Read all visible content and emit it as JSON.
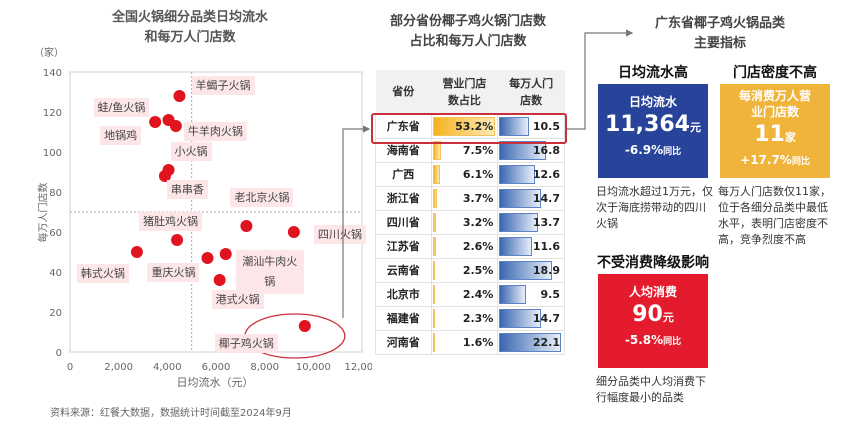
{
  "left": {
    "title1": "全国火锅细分品类日均流水",
    "title2": "和每万人门店数",
    "yunit": "（家）",
    "source": "资料来源：红餐大数据，数据统计时间截至2024年9月"
  },
  "chart_data": {
    "type": "scatter",
    "title": "全国火锅细分品类日均流水和每万人门店数",
    "xlabel": "日均流水（元）",
    "ylabel": "每万人门店数",
    "xlim": [
      0,
      12000
    ],
    "ylim": [
      0,
      140
    ],
    "xticks": [
      "0",
      "2,000",
      "4,000",
      "6,000",
      "8,000",
      "10,000",
      "12,000"
    ],
    "yticks": [
      "0",
      "20",
      "40",
      "60",
      "80",
      "100",
      "120",
      "140"
    ],
    "reference_lines": {
      "x": 5000,
      "y": 70
    },
    "grid": false,
    "points": [
      {
        "label": "羊蝎子火锅",
        "x": 4500,
        "y": 128
      },
      {
        "label": "蛙/鱼火锅",
        "x": 4050,
        "y": 116
      },
      {
        "label": "地锅鸡",
        "x": 3500,
        "y": 115
      },
      {
        "label": "牛羊肉火锅",
        "x": 4350,
        "y": 113
      },
      {
        "label": "小火锅",
        "x": 4050,
        "y": 91
      },
      {
        "label": "串串香",
        "x": 3900,
        "y": 88
      },
      {
        "label": "老北京火锅",
        "x": 7250,
        "y": 63
      },
      {
        "label": "四川火锅",
        "x": 9200,
        "y": 60
      },
      {
        "label": "猪肚鸡火锅",
        "x": 4400,
        "y": 56
      },
      {
        "label": "韩式火锅",
        "x": 2750,
        "y": 50
      },
      {
        "label": "重庆火锅",
        "x": 5650,
        "y": 47
      },
      {
        "label": "潮汕牛肉火锅",
        "x": 6400,
        "y": 49
      },
      {
        "label": "港式火锅",
        "x": 6150,
        "y": 36
      },
      {
        "label": "椰子鸡火锅",
        "x": 9650,
        "y": 13
      }
    ],
    "highlight": "椰子鸡火锅",
    "point_color": "#e0141e"
  },
  "table": {
    "title1": "部分省份椰子鸡火锅门店数",
    "title2": "占比和每万人门店数",
    "headers": [
      "省份",
      "营业门店数占比",
      "每万人门店数"
    ],
    "rows": [
      {
        "province": "广东省",
        "share": "53.2%",
        "density": "10.5"
      },
      {
        "province": "海南省",
        "share": "7.5%",
        "density": "16.8"
      },
      {
        "province": "广西",
        "share": "6.1%",
        "density": "12.6"
      },
      {
        "province": "浙江省",
        "share": "3.7%",
        "density": "14.7"
      },
      {
        "province": "四川省",
        "share": "3.2%",
        "density": "13.7"
      },
      {
        "province": "江苏省",
        "share": "2.6%",
        "density": "11.6"
      },
      {
        "province": "云南省",
        "share": "2.5%",
        "density": "18.9"
      },
      {
        "province": "北京市",
        "share": "2.4%",
        "density": "9.5"
      },
      {
        "province": "福建省",
        "share": "2.3%",
        "density": "14.7"
      },
      {
        "province": "河南省",
        "share": "1.6%",
        "density": "22.1"
      }
    ],
    "highlight": "广东省"
  },
  "right": {
    "title1": "广东省椰子鸡火锅品类",
    "title2": "主要指标",
    "cards": [
      {
        "subtitle": "日均流水高",
        "head": "日均流水",
        "value": "11,364",
        "unit": "元",
        "change": "-6.9%",
        "change_suffix": "同比",
        "color": "#27449a",
        "note": "日均流水超过1万元，仅次于海底捞带动的四川火锅"
      },
      {
        "subtitle": "门店密度不高",
        "head": "每消费万人营业门店数",
        "value": "11",
        "unit": "家",
        "change": "+17.7%",
        "change_suffix": "同比",
        "color": "#f0b43a",
        "note": "每万人门店数仅11家，位于各细分品类中最低水平，表明门店密度不高，竞争烈度不高"
      },
      {
        "subtitle": "不受消费降级影响",
        "head": "人均消费",
        "value": "90",
        "unit": "元",
        "change": "-5.8%",
        "change_suffix": "同比",
        "color": "#e31b2c",
        "note": "细分品类中人均消费下行幅度最小的品类"
      }
    ]
  }
}
